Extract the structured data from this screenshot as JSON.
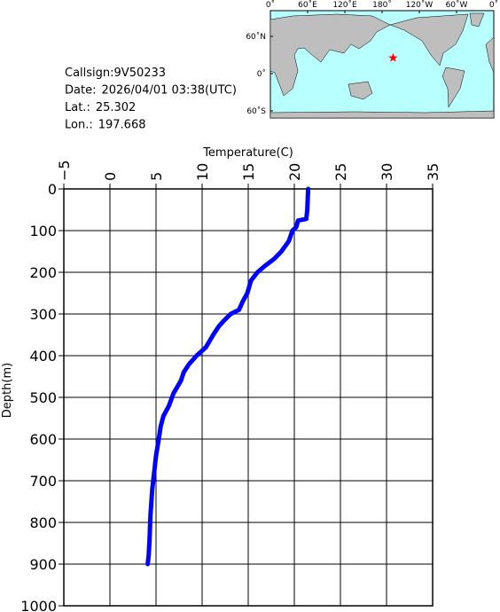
{
  "chart_data": {
    "type": "line",
    "xlabel": "Temperature(C)",
    "ylabel": "Depth(m)",
    "info": [
      {
        "label": "Callsign:",
        "value": "9V50233"
      },
      {
        "label": "Date:",
        "value": "2026/04/01 03:38(UTC)"
      },
      {
        "label": "Lat.:",
        "value": 25.302
      },
      {
        "label": "Lon.:",
        "value": 197.668
      }
    ],
    "map": {
      "lonticks": [
        {
          "value": 0,
          "label": "0˚"
        },
        {
          "value": 60,
          "label": "60˚E"
        },
        {
          "value": 120,
          "label": "120˚E"
        },
        {
          "value": 180,
          "label": "180˚"
        },
        {
          "value": 240,
          "label": "120˚W"
        },
        {
          "value": 300,
          "label": "60˚W"
        },
        {
          "value": 360,
          "label": "0˚"
        }
      ],
      "latticks": [
        {
          "value": 60,
          "label": "60˚N"
        },
        {
          "value": 0,
          "label": "0˚"
        },
        {
          "value": -60,
          "label": "60˚S"
        }
      ],
      "marker_color": "#ff0000",
      "land_color": "#bebebe",
      "sea_color": "#b8ffff"
    },
    "color": "#0000ff",
    "grid": true,
    "xlim": [
      -5,
      35
    ],
    "xticks": [
      {
        "value": -5,
        "label": "−5"
      },
      0,
      5,
      10,
      15,
      20,
      25,
      30,
      35
    ],
    "ylim": [
      0,
      1000
    ],
    "yticks": [
      0,
      100,
      200,
      300,
      400,
      500,
      600,
      700,
      800,
      900,
      1000
    ],
    "x": [
      21.5,
      21.4,
      21.3,
      20.4,
      20.2,
      19.8,
      19.4,
      18.6,
      17.8,
      16.8,
      16.0,
      15.3,
      14.9,
      14.4,
      14.0,
      13.1,
      12.4,
      11.8,
      11.2,
      10.4,
      9.4,
      8.6,
      8.0,
      7.7,
      6.9,
      6.4,
      5.8,
      5.5,
      5.3,
      5.0,
      4.8,
      4.6,
      4.4,
      4.3,
      4.2,
      4.1
    ],
    "y": [
      0,
      50,
      72,
      76,
      92,
      100,
      125,
      150,
      168,
      185,
      200,
      220,
      250,
      270,
      290,
      300,
      315,
      330,
      350,
      380,
      400,
      420,
      440,
      460,
      490,
      520,
      545,
      570,
      600,
      640,
      680,
      720,
      780,
      840,
      880,
      900
    ]
  }
}
